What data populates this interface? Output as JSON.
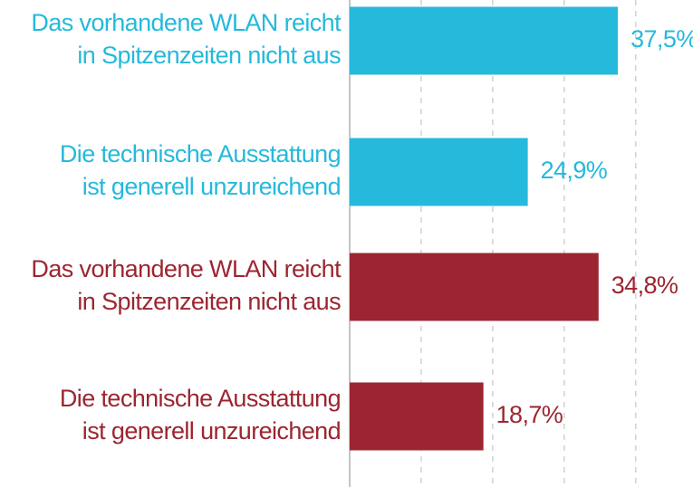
{
  "chart_data": {
    "type": "barh",
    "categories": [
      [
        "Das vorhandene WLAN reicht",
        "in Spitzenzeiten nicht aus"
      ],
      [
        "Die technische Ausstattung",
        "ist generell unzureichend"
      ],
      [
        "Das vorhandene WLAN reicht",
        "in Spitzenzeiten nicht aus"
      ],
      [
        "Die technische Ausstattung",
        "ist generell unzureichend"
      ]
    ],
    "values": [
      37.5,
      24.9,
      34.8,
      18.7
    ],
    "value_labels": [
      "37,5%",
      "24,9%",
      "34,8%",
      "18,7%"
    ],
    "colors": [
      "#25b9dc",
      "#25b9dc",
      "#9b2631",
      "#9b2631"
    ],
    "xlim": [
      0,
      48
    ],
    "xticks": [
      0,
      10,
      20,
      30,
      40
    ],
    "grid": true
  }
}
